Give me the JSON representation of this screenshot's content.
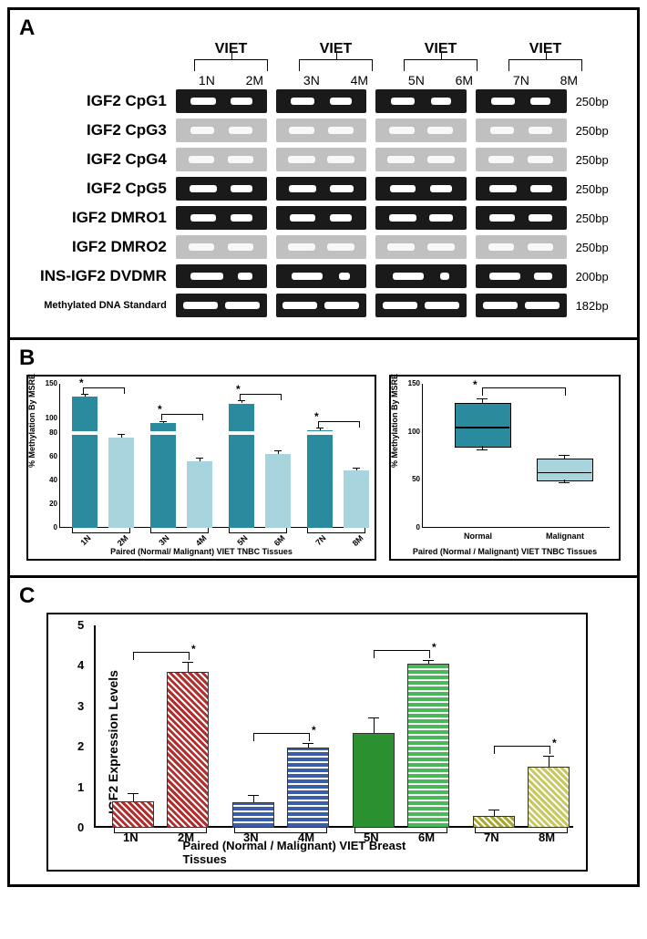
{
  "panelA": {
    "label": "A",
    "group_header": "VIET",
    "lanes": [
      "1N",
      "2M",
      "3N",
      "4M",
      "5N",
      "6M",
      "7N",
      "8M"
    ],
    "rows": [
      {
        "label": "IGF2 CpG1",
        "bg": "dark",
        "bp": "250bp",
        "intensity": [
          28,
          24,
          26,
          24,
          26,
          22,
          26,
          22
        ]
      },
      {
        "label": "IGF2 CpG3",
        "bg": "light",
        "bp": "250bp",
        "intensity": [
          26,
          26,
          28,
          28,
          28,
          28,
          26,
          26
        ]
      },
      {
        "label": "IGF2 CpG4",
        "bg": "light",
        "bp": "250bp",
        "intensity": [
          28,
          28,
          30,
          30,
          30,
          30,
          28,
          28
        ]
      },
      {
        "label": "IGF2 CpG5",
        "bg": "dark",
        "bp": "250bp",
        "intensity": [
          30,
          24,
          30,
          26,
          28,
          24,
          30,
          24
        ]
      },
      {
        "label": "IGF2 DMRO1",
        "bg": "dark",
        "bp": "250bp",
        "intensity": [
          28,
          24,
          28,
          24,
          30,
          26,
          28,
          26
        ]
      },
      {
        "label": "IGF2 DMRO2",
        "bg": "light",
        "bp": "250bp",
        "intensity": [
          28,
          28,
          30,
          30,
          30,
          30,
          28,
          28
        ]
      },
      {
        "label": "INS-IGF2 DVDMR",
        "bg": "dark",
        "bp": "200bp",
        "intensity": [
          36,
          16,
          34,
          12,
          34,
          10,
          34,
          20
        ]
      },
      {
        "label": "Methylated DNA Standard",
        "small": true,
        "bg": "dark",
        "bp": "182bp",
        "intensity": [
          38,
          38,
          38,
          38,
          38,
          38,
          38,
          38
        ]
      }
    ]
  },
  "panelB": {
    "label": "B",
    "bar": {
      "ylabel": "% Methylation By MSRE",
      "xlabel": "Paired (Normal/ Malignant) VIET TNBC Tissues",
      "yticks": [
        0,
        20,
        40,
        60,
        80,
        100,
        150
      ],
      "axis_break_at": 80,
      "categories": [
        "1N",
        "2M",
        "3N",
        "4M",
        "5N",
        "6M",
        "7N",
        "8M"
      ],
      "values": [
        132,
        76,
        94,
        56,
        122,
        62,
        84,
        48
      ],
      "colors": [
        "dark",
        "light",
        "dark",
        "light",
        "dark",
        "light",
        "dark",
        "light"
      ],
      "err": [
        4,
        3,
        3,
        3,
        4,
        3,
        3,
        3
      ]
    },
    "box": {
      "ylabel": "% Methylation By MSRE",
      "xlabel": "Paired (Normal / Malignant) VIET TNBC Tissues",
      "yticks": [
        0,
        50,
        100,
        150
      ],
      "groups": [
        {
          "label": "Normal",
          "q1": 85,
          "med": 105,
          "q3": 130,
          "lo": 82,
          "hi": 135,
          "color": "dark"
        },
        {
          "label": "Malignant",
          "q1": 50,
          "med": 58,
          "q3": 72,
          "lo": 47,
          "hi": 76,
          "color": "light"
        }
      ]
    }
  },
  "panelC": {
    "label": "C",
    "ylabel": "IGF2 Expression Levels",
    "xlabel": "Paired (Normal / Malignant) VIET Breast Tissues",
    "ymax": 5,
    "yticks": [
      0,
      1,
      2,
      3,
      4,
      5
    ],
    "bars": [
      {
        "label": "1N",
        "val": 0.65,
        "err": 0.2,
        "color": "#b03030",
        "pattern": "diag"
      },
      {
        "label": "2M",
        "val": 3.85,
        "err": 0.25,
        "color": "#b03030",
        "pattern": "diag"
      },
      {
        "label": "3N",
        "val": 0.62,
        "err": 0.18,
        "color": "#3a5fa8",
        "pattern": "hstripe"
      },
      {
        "label": "4M",
        "val": 1.98,
        "err": 0.12,
        "color": "#3a5fa8",
        "pattern": "hstripe"
      },
      {
        "label": "5N",
        "val": 2.35,
        "err": 0.38,
        "color": "#2a9030",
        "pattern": "solid"
      },
      {
        "label": "6M",
        "val": 4.05,
        "err": 0.1,
        "color": "#4ab858",
        "pattern": "hstripe"
      },
      {
        "label": "7N",
        "val": 0.3,
        "err": 0.15,
        "color": "#a8a830",
        "pattern": "diag"
      },
      {
        "label": "8M",
        "val": 1.52,
        "err": 0.25,
        "color": "#c8c860",
        "pattern": "diag"
      }
    ],
    "sig_pairs": [
      [
        0,
        1
      ],
      [
        2,
        3
      ],
      [
        4,
        5
      ],
      [
        6,
        7
      ]
    ]
  }
}
